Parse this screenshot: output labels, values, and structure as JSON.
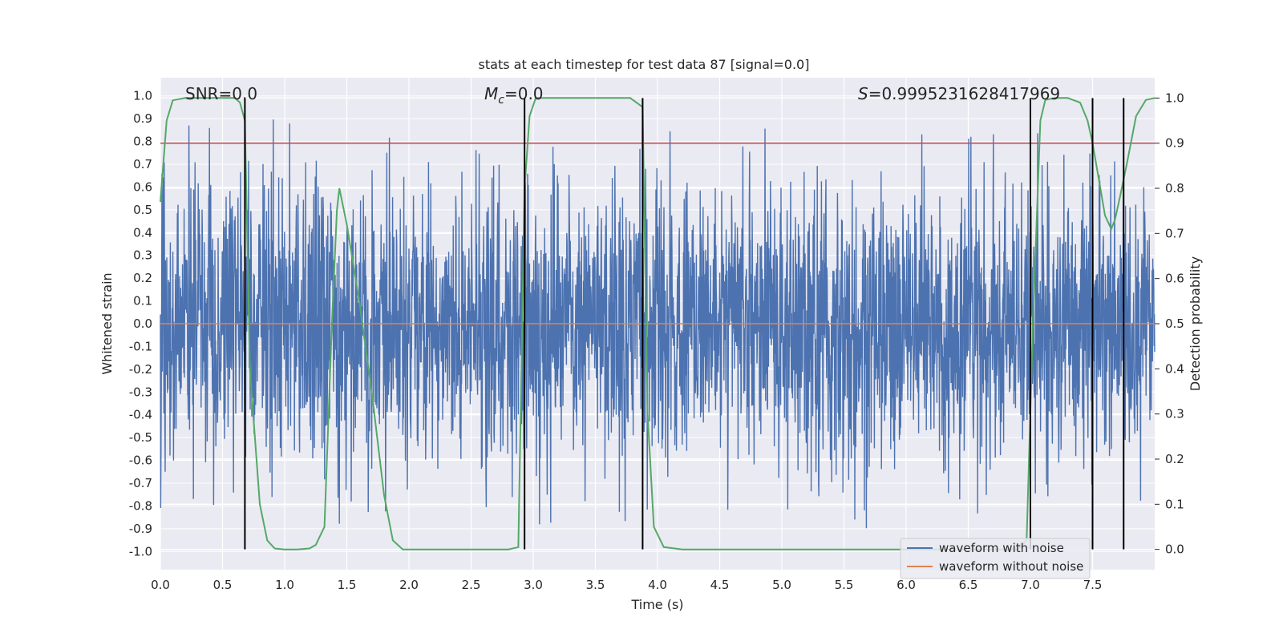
{
  "chart_data": {
    "type": "line",
    "title": "stats at each timestep for test data 87 [signal=0.0]",
    "xlabel": "Time (s)",
    "ylabel_left": "Whitened strain",
    "ylabel_right": "Detection probability",
    "xlim": [
      0.0,
      8.0
    ],
    "ylim_left": [
      -1.08,
      1.08
    ],
    "ylim_right": [
      -0.045,
      1.045
    ],
    "x_ticks": [
      "0.0",
      "0.5",
      "1.0",
      "1.5",
      "2.0",
      "2.5",
      "3.0",
      "3.5",
      "4.0",
      "4.5",
      "5.0",
      "5.5",
      "6.0",
      "6.5",
      "7.0",
      "7.5"
    ],
    "y_ticks_left": [
      "-1.0",
      "-0.9",
      "-0.8",
      "-0.7",
      "-0.6",
      "-0.5",
      "-0.4",
      "-0.3",
      "-0.2",
      "-0.1",
      "0.0",
      "0.1",
      "0.2",
      "0.3",
      "0.4",
      "0.5",
      "0.6",
      "0.7",
      "0.8",
      "0.9",
      "1.0"
    ],
    "y_ticks_right": [
      "0.0",
      "0.1",
      "0.2",
      "0.3",
      "0.4",
      "0.5",
      "0.6",
      "0.7",
      "0.8",
      "0.9",
      "1.0"
    ],
    "annotations": {
      "snr": "SNR=0.0",
      "mc_symbol": "M",
      "mc_sub": "c",
      "mc_value": "=0.0",
      "s_symbol": "S",
      "s_value": "=0.9995231628417969"
    },
    "threshold": {
      "axis": "right",
      "value": 0.9,
      "color": "#c44e52"
    },
    "vertical_markers": [
      0.68,
      2.93,
      3.88,
      7.0,
      7.5,
      7.75
    ],
    "series": [
      {
        "name": "waveform with noise",
        "axis": "left",
        "color": "#4c72b0",
        "description": "dense noisy whitened strain, mostly within about ±0.5 with spikes reaching about 0.9 and -0.95",
        "core_amplitude": 0.5,
        "max_spike": 0.9,
        "min_spike": -0.96
      },
      {
        "name": "waveform without noise",
        "axis": "left",
        "color": "#dd8452",
        "x": [
          0.0,
          8.0
        ],
        "y": [
          0.0,
          0.0
        ]
      },
      {
        "name": "detection probability",
        "axis": "right",
        "color": "#55a868",
        "x": [
          0.0,
          0.05,
          0.1,
          0.2,
          0.3,
          0.4,
          0.5,
          0.6,
          0.64,
          0.68,
          0.72,
          0.8,
          0.86,
          0.92,
          1.0,
          1.1,
          1.2,
          1.25,
          1.32,
          1.38,
          1.42,
          1.44,
          1.5,
          1.6,
          1.7,
          1.8,
          1.87,
          1.95,
          2.0,
          2.5,
          2.8,
          2.88,
          2.93,
          2.97,
          3.02,
          3.1,
          3.5,
          3.78,
          3.88,
          3.92,
          3.97,
          4.05,
          4.2,
          5.0,
          5.8,
          6.8,
          6.9,
          6.97,
          7.02,
          7.08,
          7.12,
          7.2,
          7.3,
          7.4,
          7.46,
          7.5,
          7.55,
          7.6,
          7.65,
          7.68,
          7.72,
          7.78,
          7.85,
          7.93,
          8.0
        ],
        "y": [
          0.77,
          0.95,
          0.995,
          1.0,
          1.0,
          1.0,
          1.0,
          1.0,
          0.99,
          0.95,
          0.4,
          0.1,
          0.02,
          0.002,
          0.0,
          0.0,
          0.002,
          0.01,
          0.05,
          0.5,
          0.75,
          0.8,
          0.72,
          0.55,
          0.35,
          0.12,
          0.02,
          0.0,
          0.0,
          0.0,
          0.0,
          0.005,
          0.8,
          0.96,
          1.0,
          1.0,
          1.0,
          1.0,
          0.98,
          0.3,
          0.05,
          0.005,
          0.0,
          0.0,
          0.0,
          0.0,
          0.0,
          0.02,
          0.5,
          0.95,
          0.996,
          1.0,
          1.0,
          0.99,
          0.95,
          0.9,
          0.82,
          0.74,
          0.71,
          0.73,
          0.78,
          0.86,
          0.96,
          0.996,
          1.0
        ]
      }
    ],
    "legend": {
      "placement": "bottom-right",
      "entries": [
        "waveform with noise",
        "waveform without noise"
      ]
    }
  }
}
